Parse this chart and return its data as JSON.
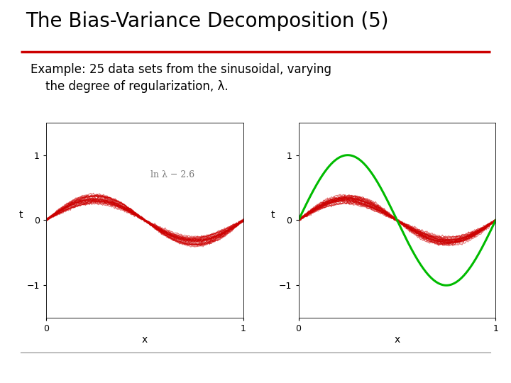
{
  "title": "The Bias-Variance Decomposition (5)",
  "subtitle_line1": "Example: 25 data sets from the sinusoidal, varying",
  "subtitle_line2": "    the degree of regularization, λ.",
  "title_color": "#000000",
  "title_underline_color": "#cc0000",
  "bg_color": "#ffffff",
  "left_plot": {
    "annotation": "ln λ − 2.6",
    "ylabel": "t",
    "xlabel": "x",
    "xlim": [
      0,
      1
    ],
    "ylim": [
      -1.5,
      1.5
    ],
    "yticks": [
      -1,
      0,
      1
    ],
    "xticks": [
      0,
      1
    ],
    "n_curves": 25,
    "curve_color": "#cc0000",
    "curve_alpha": 0.55,
    "curve_linewidth": 0.8
  },
  "right_plot": {
    "ylabel": "t",
    "xlabel": "x",
    "xlim": [
      0,
      1
    ],
    "ylim": [
      -1.5,
      1.5
    ],
    "yticks": [
      -1,
      0,
      1
    ],
    "xticks": [
      0,
      1
    ],
    "sin_color": "#00bb00",
    "curve_color": "#cc0000",
    "curve_alpha": 0.55,
    "curve_linewidth": 0.8,
    "n_curves": 25,
    "sin_linewidth": 2.2
  }
}
